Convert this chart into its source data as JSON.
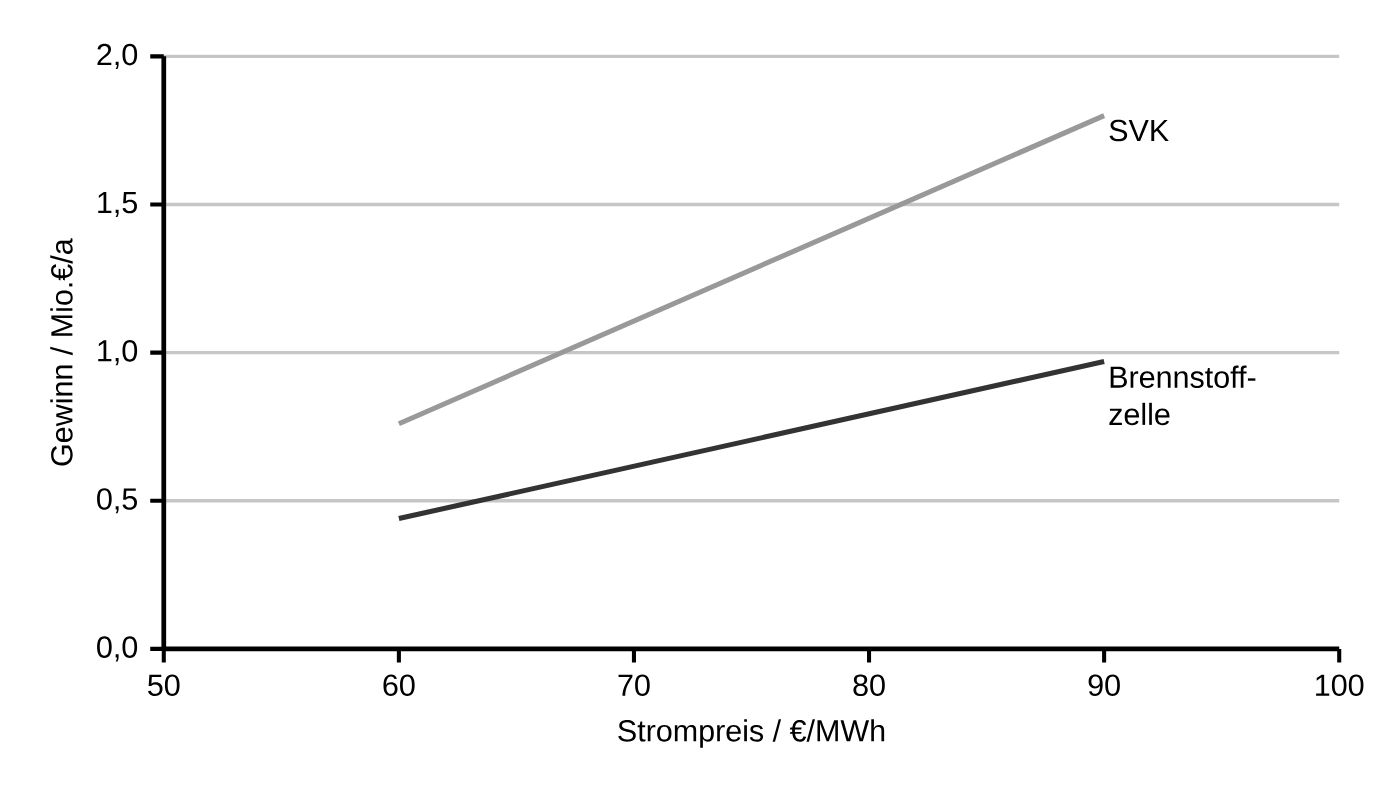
{
  "chart_data": {
    "type": "line",
    "xlabel": "Strompreis / €/MWh",
    "ylabel": "Gewinn / Mio.€/a",
    "xlim": [
      50,
      100
    ],
    "xticks": [
      50,
      60,
      70,
      80,
      90,
      100
    ],
    "ylim": [
      0,
      2
    ],
    "yticks": [
      {
        "value": 0,
        "label": "0,0"
      },
      {
        "value": 0.5,
        "label": "0,5"
      },
      {
        "value": 1,
        "label": "1,0"
      },
      {
        "value": 1.5,
        "label": "1,5"
      },
      {
        "value": 2,
        "label": "2,0"
      }
    ],
    "grid": "y",
    "marker": "none",
    "line_style": "solid",
    "x": [
      60,
      90
    ],
    "series": [
      {
        "name": "SVK",
        "color": "#999999",
        "values": [
          0.76,
          1.8
        ]
      },
      {
        "name": "Brennstoff-zelle",
        "color": "#333333",
        "values": [
          0.44,
          0.97
        ]
      }
    ]
  }
}
